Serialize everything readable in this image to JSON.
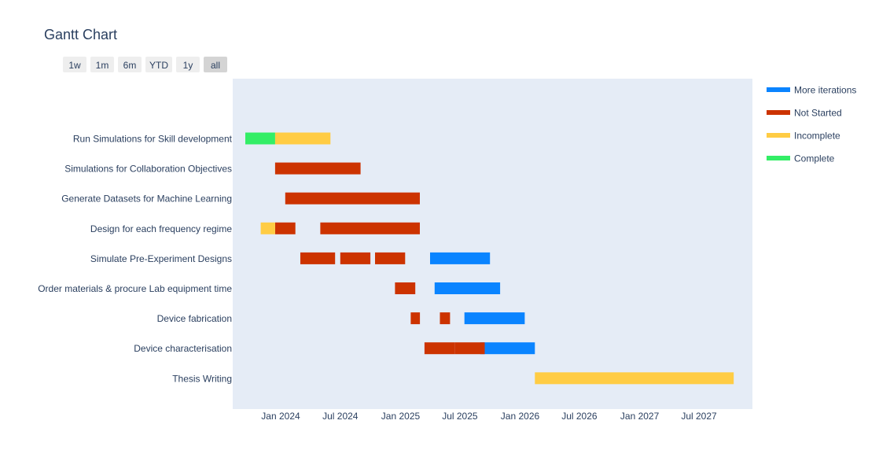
{
  "chart_data": {
    "type": "gantt",
    "title": "Gantt Chart",
    "range_buttons": [
      "1w",
      "1m",
      "6m",
      "YTD",
      "1y",
      "all"
    ],
    "active_range": "all",
    "xlabel": "",
    "ylabel": "",
    "xlim": [
      "2023-09-01",
      "2027-12-01"
    ],
    "x_ticks": [
      {
        "date": "2024-01-01",
        "label": "Jan 2024"
      },
      {
        "date": "2024-07-01",
        "label": "Jul 2024"
      },
      {
        "date": "2025-01-01",
        "label": "Jan 2025"
      },
      {
        "date": "2025-07-01",
        "label": "Jul 2025"
      },
      {
        "date": "2026-01-01",
        "label": "Jan 2026"
      },
      {
        "date": "2026-07-01",
        "label": "Jul 2026"
      },
      {
        "date": "2027-01-01",
        "label": "Jan 2027"
      },
      {
        "date": "2027-07-01",
        "label": "Jul 2027"
      }
    ],
    "categories": [
      "Run Simulations for Skill development",
      "Simulations for Collaboration Objectives",
      "Generate Datasets for Machine Learning",
      "Design for each frequency regime",
      "Simulate Pre-Experiment Designs",
      "Order materials & procure Lab equipment time",
      "Device fabrication",
      "Device characterisation",
      "Thesis Writing"
    ],
    "grid": false,
    "legend_position": "right",
    "series": [
      {
        "name": "More iterations",
        "color": "#0a84ff",
        "tasks": [
          {
            "task": "Simulate Pre-Experiment Designs",
            "start": "2025-04-01",
            "end": "2025-10-01"
          },
          {
            "task": "Order materials & procure Lab equipment time",
            "start": "2025-04-15",
            "end": "2025-11-01"
          },
          {
            "task": "Device fabrication",
            "start": "2025-07-15",
            "end": "2026-01-15"
          },
          {
            "task": "Device characterisation",
            "start": "2025-09-01",
            "end": "2026-02-15"
          }
        ]
      },
      {
        "name": "Not Started",
        "color": "#cc3300",
        "tasks": [
          {
            "task": "Simulations for Collaboration Objectives",
            "start": "2023-12-15",
            "end": "2024-09-01"
          },
          {
            "task": "Generate Datasets for Machine Learning",
            "start": "2024-01-15",
            "end": "2025-03-01"
          },
          {
            "task": "Design for each frequency regime",
            "start": "2023-12-15",
            "end": "2024-02-15"
          },
          {
            "task": "Design for each frequency regime",
            "start": "2024-05-01",
            "end": "2025-03-01"
          },
          {
            "task": "Simulate Pre-Experiment Designs",
            "start": "2024-03-01",
            "end": "2024-06-15"
          },
          {
            "task": "Simulate Pre-Experiment Designs",
            "start": "2024-07-01",
            "end": "2024-10-01"
          },
          {
            "task": "Simulate Pre-Experiment Designs",
            "start": "2024-10-15",
            "end": "2025-01-15"
          },
          {
            "task": "Order materials & procure Lab equipment time",
            "start": "2024-12-15",
            "end": "2025-02-15"
          },
          {
            "task": "Device fabrication",
            "start": "2025-02-01",
            "end": "2025-03-01"
          },
          {
            "task": "Device fabrication",
            "start": "2025-05-01",
            "end": "2025-06-01"
          },
          {
            "task": "Device characterisation",
            "start": "2025-03-15",
            "end": "2025-06-15"
          },
          {
            "task": "Device characterisation",
            "start": "2025-06-15",
            "end": "2025-09-15"
          }
        ]
      },
      {
        "name": "Incomplete",
        "color": "#ffcc44",
        "tasks": [
          {
            "task": "Run Simulations for Skill development",
            "start": "2023-12-15",
            "end": "2024-06-01"
          },
          {
            "task": "Design for each frequency regime",
            "start": "2023-11-01",
            "end": "2023-12-15"
          },
          {
            "task": "Thesis Writing",
            "start": "2026-02-15",
            "end": "2027-10-15"
          }
        ]
      },
      {
        "name": "Complete",
        "color": "#33ee66",
        "tasks": [
          {
            "task": "Run Simulations for Skill development",
            "start": "2023-09-15",
            "end": "2023-12-15"
          }
        ]
      }
    ]
  },
  "colors": {
    "plot_bg": "#e5ecf6",
    "text": "#2a3f5f",
    "button_bg": "#eeeeee",
    "button_active_bg": "#d4d4d4"
  }
}
